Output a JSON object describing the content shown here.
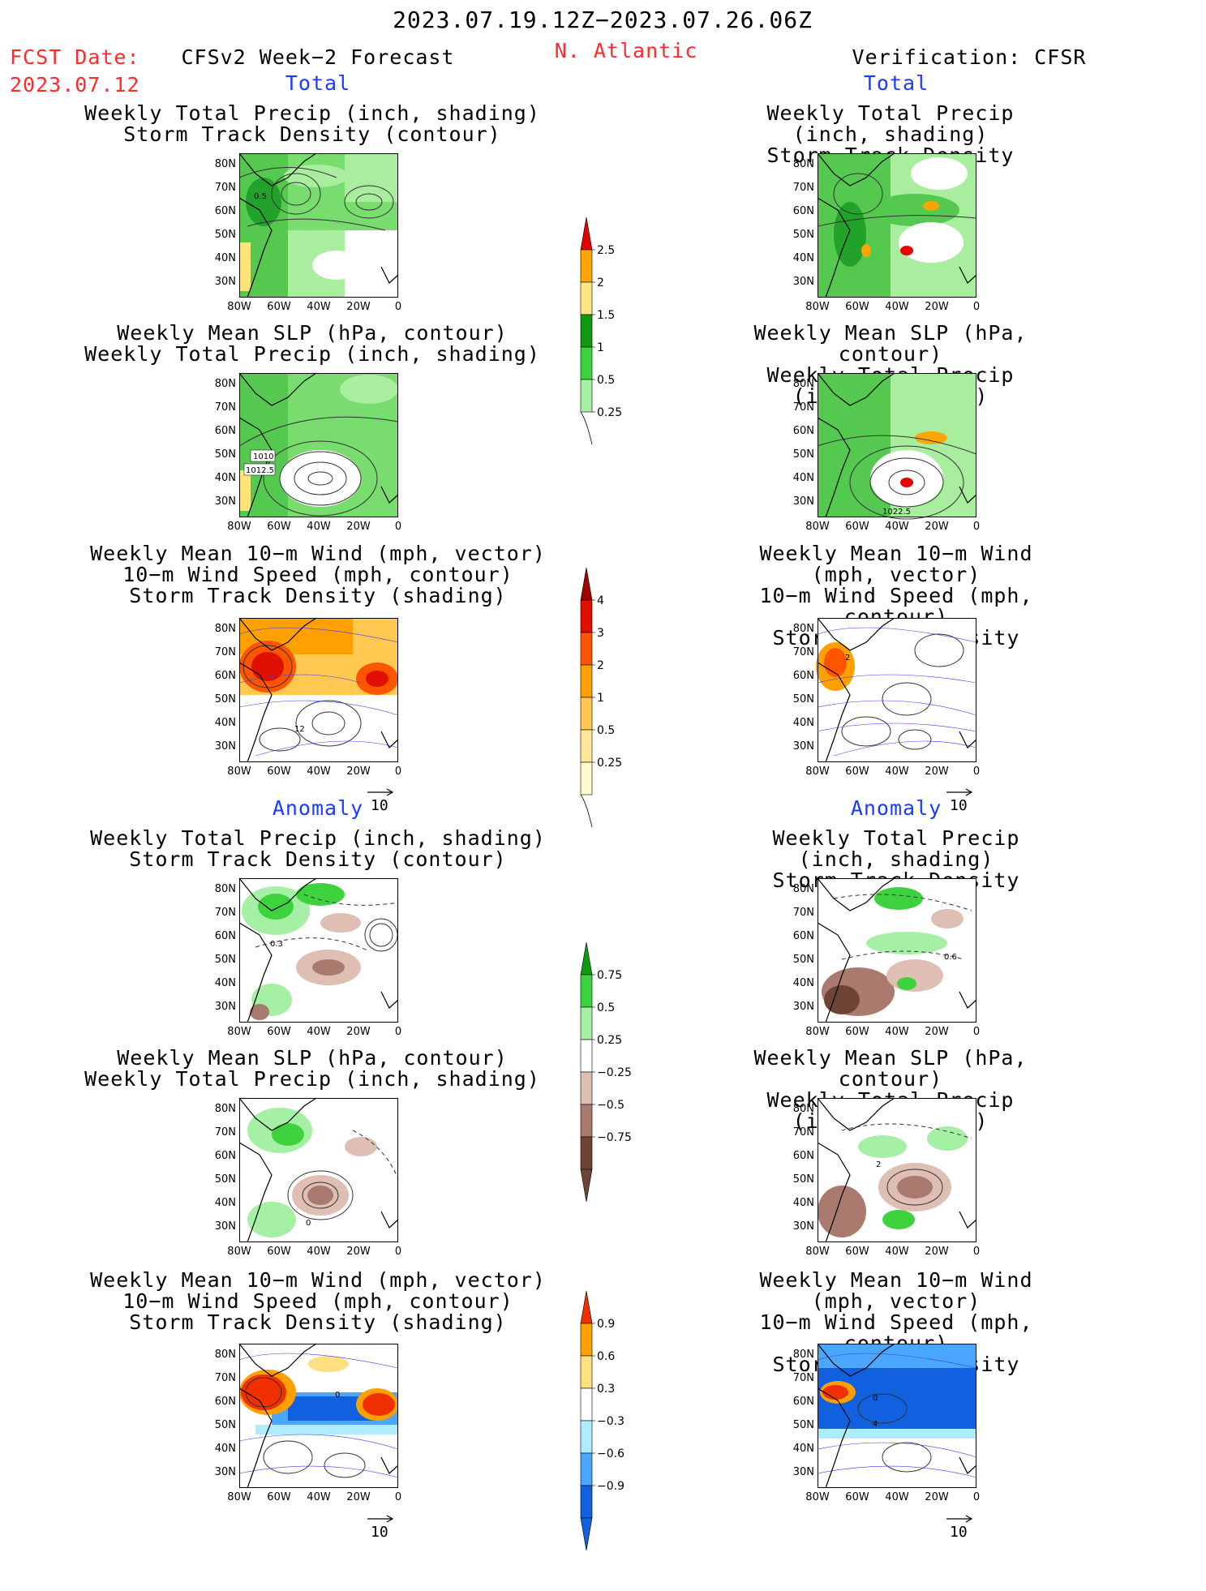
{
  "header": {
    "date_range": "2023.07.19.12Z−2023.07.26.06Z",
    "fcst_label": "FCST Date:",
    "fcst_date": "2023.07.12",
    "model_label": "CFSv2 Week−2 Forecast",
    "region": "N. Atlantic",
    "verification_label": "Verification: CFSR"
  },
  "sections": {
    "total": "Total",
    "anomaly": "Anomaly"
  },
  "titles": {
    "precip_storm": [
      "Weekly Total Precip (inch, shading)",
      "Storm Track Density (contour)"
    ],
    "slp_precip": [
      "Weekly Mean SLP (hPa, contour)",
      "Weekly Total Precip (inch, shading)"
    ],
    "wind_storm": [
      "Weekly Mean 10−m Wind (mph, vector)",
      "10−m Wind Speed (mph, contour)",
      "Storm Track Density (shading)"
    ]
  },
  "axes": {
    "lat_ticks": [
      "80N",
      "70N",
      "60N",
      "50N",
      "40N",
      "30N"
    ],
    "lon_ticks": [
      "80W",
      "60W",
      "40W",
      "20W",
      "0"
    ]
  },
  "vector_scale": "10",
  "contour_labels": {
    "fcst_precip_storm": "0.5",
    "fcst_slp_a": "1010",
    "fcst_slp_b": "1012.5",
    "verif_slp": "1022.5",
    "fcst_wind": "12",
    "verif_wind": "2",
    "fcst_anom_storm": "0.3",
    "verif_anom_storm": "0.6",
    "fcst_anom_slp": "0",
    "verif_anom_slp": "2",
    "fcst_anom_wind": "0",
    "verif_anom_wind_a": "0",
    "verif_anom_wind_b": "4"
  },
  "colorbars": {
    "total_precip": {
      "labels": [
        "2.5",
        "2",
        "1.5",
        "1",
        "0.5",
        "0.25"
      ],
      "colors": [
        "#e60000",
        "#ffa500",
        "#ffe680",
        "#119911",
        "#3fd23f",
        "#a6f0a6"
      ]
    },
    "storm_density": {
      "labels": [
        "4",
        "3",
        "2",
        "1",
        "0.5",
        "0.25"
      ],
      "colors": [
        "#a00000",
        "#e01000",
        "#ff5500",
        "#ffa000",
        "#ffc850",
        "#ffe89a",
        "#fffacc"
      ]
    },
    "precip_anom": {
      "labels": [
        "0.75",
        "0.5",
        "0.25",
        "−0.25",
        "−0.5",
        "−0.75"
      ],
      "colors": [
        "#109a10",
        "#3fd23f",
        "#a6f0a6",
        "#ffffff",
        "#dfbeb4",
        "#aa7a6e",
        "#6e4436"
      ]
    },
    "density_anom": {
      "labels": [
        "0.9",
        "0.6",
        "0.3",
        "−0.3",
        "−0.6",
        "−0.9"
      ],
      "colors": [
        "#f03000",
        "#ffa000",
        "#ffe080",
        "#ffffff",
        "#b0ecff",
        "#4aa6ff",
        "#1060e0"
      ]
    }
  }
}
